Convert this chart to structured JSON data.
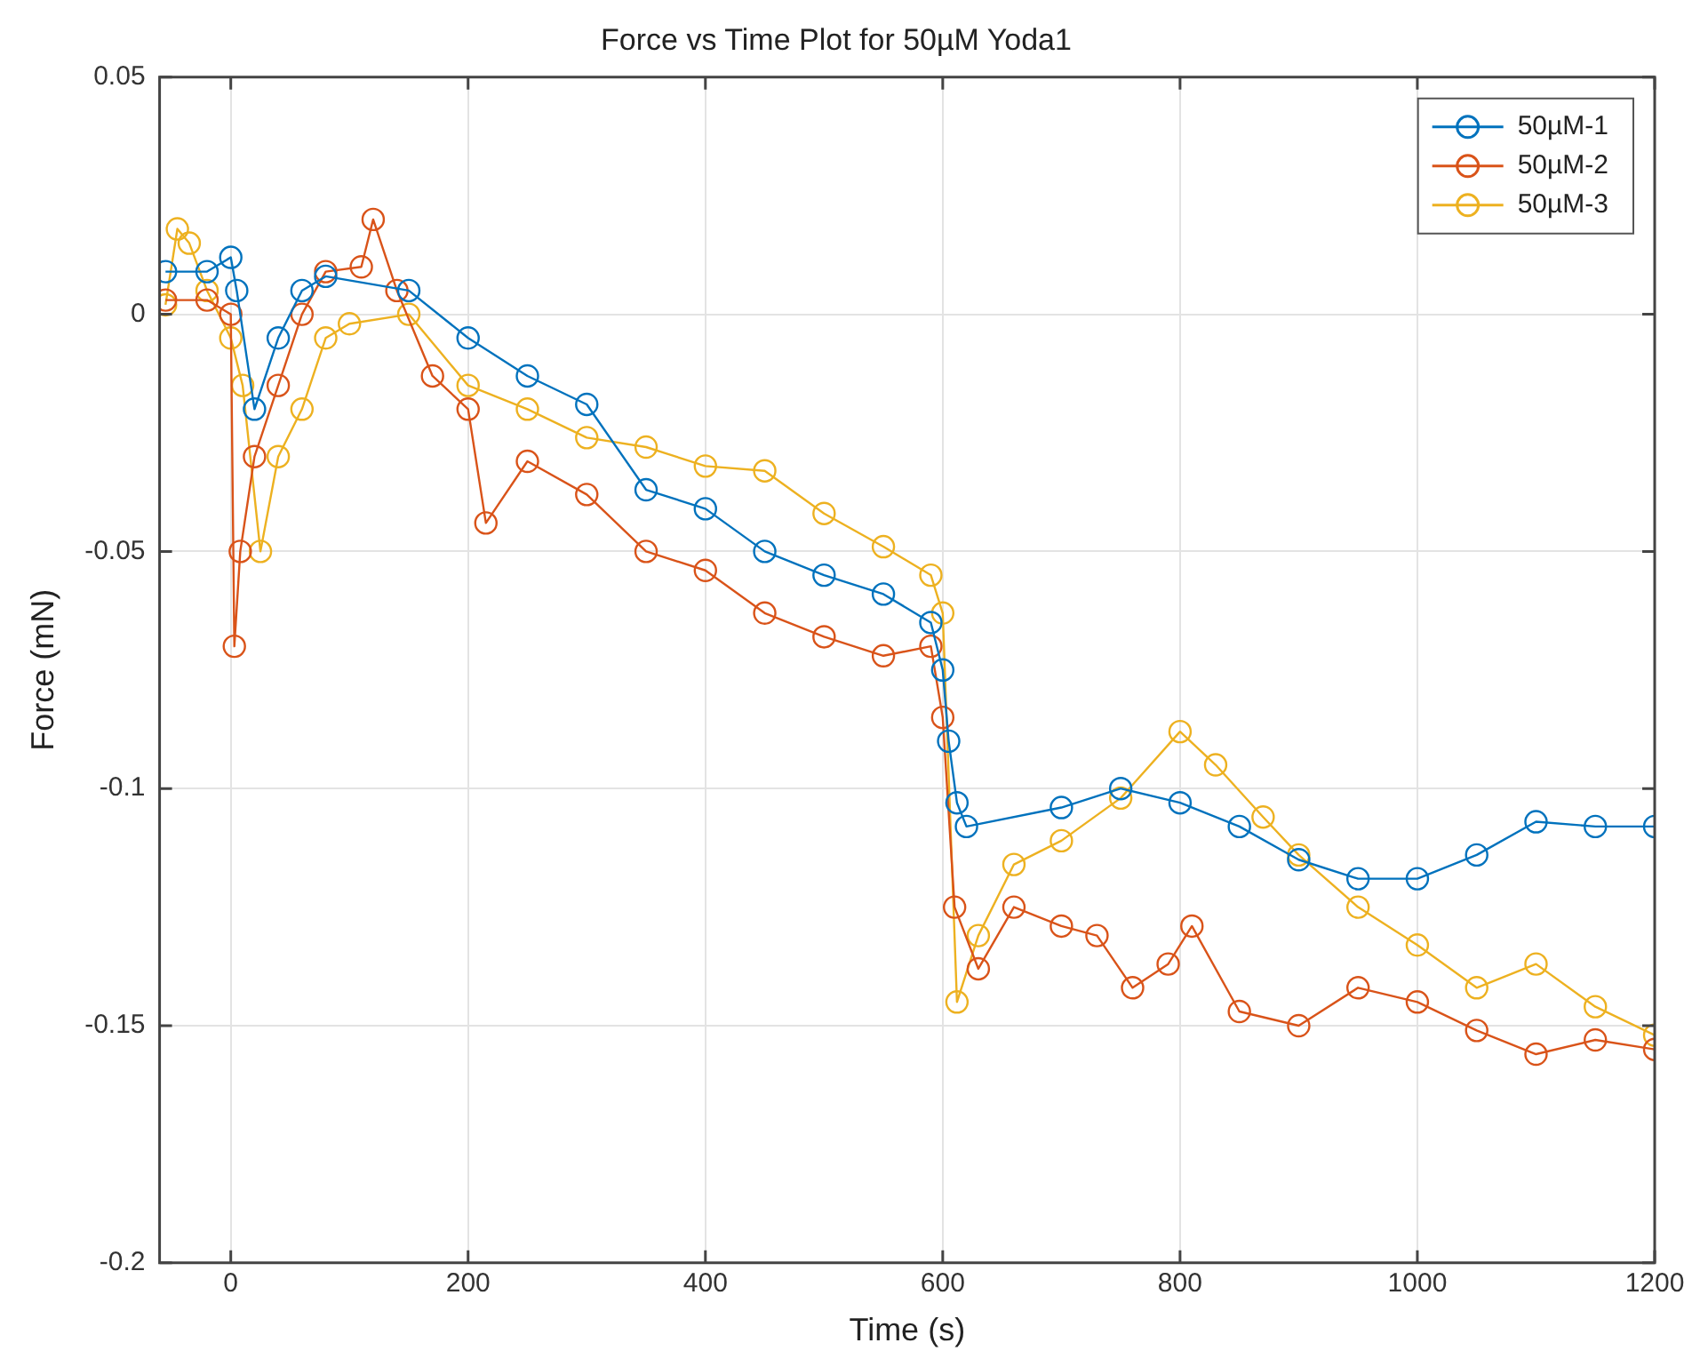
{
  "chart_data": {
    "type": "line",
    "title": "Force vs Time Plot for 50µM Yoda1",
    "xlabel": "Time (s)",
    "ylabel": "Force (mN)",
    "xlim": [
      -60,
      1200
    ],
    "xticks": [
      0,
      200,
      400,
      600,
      800,
      1000,
      1200
    ],
    "ylim": [
      -0.2,
      0.05
    ],
    "yticks": [
      -0.2,
      -0.15,
      -0.1,
      -0.05,
      0,
      0.05
    ],
    "grid": true,
    "legend": "top right",
    "marker": "circle",
    "line_style": "solid",
    "series": [
      {
        "name": "50µM-1",
        "color": "#0072bd",
        "x": [
          -55,
          -20,
          0,
          5,
          20,
          40,
          60,
          80,
          150,
          200,
          250,
          300,
          350,
          400,
          450,
          500,
          550,
          590,
          600,
          605,
          612,
          620,
          700,
          750,
          800,
          850,
          900,
          950,
          1000,
          1050,
          1100,
          1150,
          1200
        ],
        "values": [
          0.009,
          0.009,
          0.012,
          0.005,
          -0.02,
          -0.005,
          0.005,
          0.008,
          0.005,
          -0.005,
          -0.013,
          -0.019,
          -0.037,
          -0.041,
          -0.05,
          -0.055,
          -0.059,
          -0.065,
          -0.075,
          -0.09,
          -0.103,
          -0.108,
          -0.104,
          -0.1,
          -0.103,
          -0.108,
          -0.115,
          -0.119,
          -0.119,
          -0.114,
          -0.107,
          -0.108,
          -0.108
        ]
      },
      {
        "name": "50µM-2",
        "color": "#d95319",
        "x": [
          -55,
          -20,
          0,
          3,
          8,
          20,
          40,
          60,
          80,
          110,
          120,
          140,
          170,
          200,
          215,
          250,
          300,
          350,
          400,
          450,
          500,
          550,
          590,
          600,
          610,
          630,
          660,
          700,
          730,
          760,
          790,
          810,
          850,
          900,
          950,
          1000,
          1050,
          1100,
          1150,
          1200
        ],
        "values": [
          0.003,
          0.003,
          0.0,
          -0.07,
          -0.05,
          -0.03,
          -0.015,
          0.0,
          0.009,
          0.01,
          0.02,
          0.005,
          -0.013,
          -0.02,
          -0.044,
          -0.031,
          -0.038,
          -0.05,
          -0.054,
          -0.063,
          -0.068,
          -0.072,
          -0.07,
          -0.085,
          -0.125,
          -0.138,
          -0.125,
          -0.129,
          -0.131,
          -0.142,
          -0.137,
          -0.129,
          -0.147,
          -0.15,
          -0.142,
          -0.145,
          -0.151,
          -0.156,
          -0.153,
          -0.155
        ]
      },
      {
        "name": "50µM-3",
        "color": "#edb120",
        "x": [
          -55,
          -45,
          -35,
          -20,
          0,
          10,
          25,
          40,
          60,
          80,
          100,
          150,
          200,
          250,
          300,
          350,
          400,
          450,
          500,
          550,
          590,
          600,
          612,
          630,
          660,
          700,
          750,
          800,
          830,
          870,
          900,
          950,
          1000,
          1050,
          1100,
          1150,
          1200
        ],
        "values": [
          0.002,
          0.018,
          0.015,
          0.005,
          -0.005,
          -0.015,
          -0.05,
          -0.03,
          -0.02,
          -0.005,
          -0.002,
          0.0,
          -0.015,
          -0.02,
          -0.026,
          -0.028,
          -0.032,
          -0.033,
          -0.042,
          -0.049,
          -0.055,
          -0.063,
          -0.145,
          -0.131,
          -0.116,
          -0.111,
          -0.102,
          -0.088,
          -0.095,
          -0.106,
          -0.114,
          -0.125,
          -0.133,
          -0.142,
          -0.137,
          -0.146,
          -0.152
        ]
      }
    ]
  }
}
